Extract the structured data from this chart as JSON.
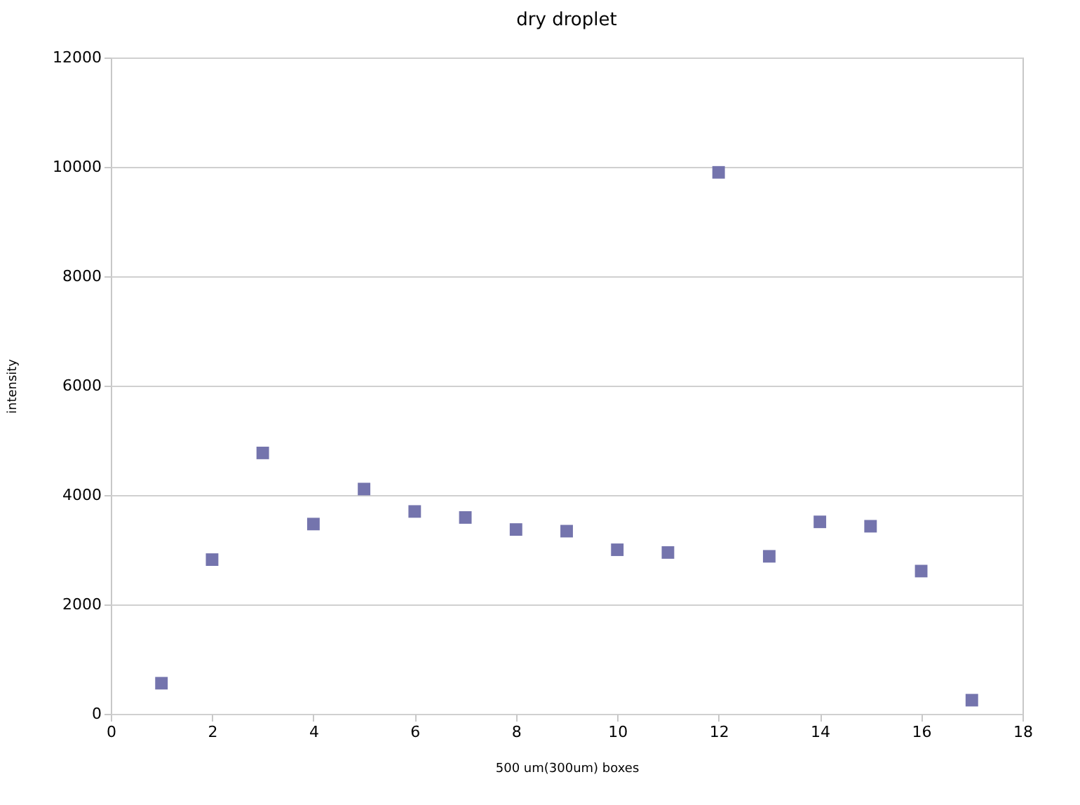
{
  "chart_data": {
    "type": "scatter",
    "title": "dry droplet",
    "xlabel": "500 um(300um) boxes",
    "ylabel": "intensity",
    "x": [
      1,
      2,
      3,
      4,
      5,
      6,
      7,
      8,
      9,
      10,
      11,
      12,
      13,
      14,
      15,
      16,
      17
    ],
    "series": [
      {
        "color": "#7474ad",
        "values": [
          560,
          2820,
          4770,
          3470,
          4110,
          3700,
          3590,
          3370,
          3340,
          3000,
          2950,
          9900,
          2880,
          3510,
          3430,
          2610,
          250
        ]
      }
    ],
    "xlim": [
      0,
      18
    ],
    "xticks": [
      0,
      2,
      4,
      6,
      8,
      10,
      12,
      14,
      16,
      18
    ],
    "ylim": [
      0,
      12000
    ],
    "yticks": [
      0,
      2000,
      4000,
      6000,
      8000,
      10000,
      12000
    ],
    "grid": "y",
    "marker": "square",
    "legend": false
  }
}
